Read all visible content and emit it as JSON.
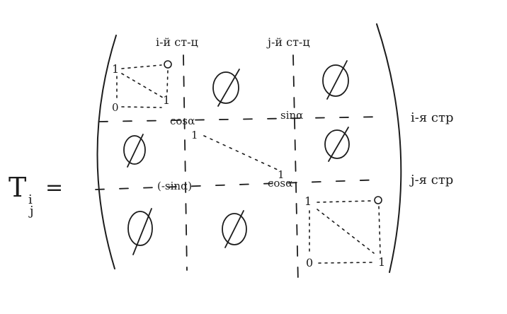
{
  "lhs": {
    "symbol": "T",
    "sub_i": "i",
    "sub_j": "j",
    "equals": "="
  },
  "col_labels": {
    "i": "i-й ст-ц",
    "j": "j-й ст-ц"
  },
  "row_labels": {
    "i": "i-я стр",
    "j": "j-я стр"
  },
  "entries": {
    "cos_top": "cosα",
    "sin_top": "sinα",
    "minus_sin": "(-sinα)",
    "cos_bottom": "cosα",
    "diag_one": "1",
    "diag_one_mid": "1",
    "diag_one_j": "1",
    "zero": "0",
    "null_symbol": "∅"
  }
}
